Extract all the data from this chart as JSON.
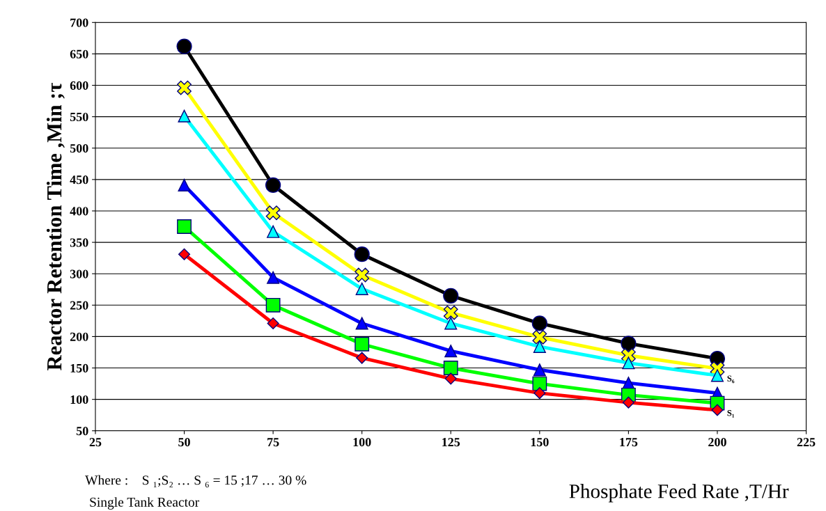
{
  "chart_data": {
    "type": "line",
    "xlabel": "Phosphate Feed Rate ,T/Hr",
    "ylabel": "Reactor Retention Time ,Min ;τ",
    "x": [
      50,
      75,
      100,
      125,
      150,
      175,
      200
    ],
    "series": [
      {
        "color": "#ff0000",
        "marker": "diamond",
        "values": [
          331,
          221,
          166,
          133,
          110,
          95,
          83
        ]
      },
      {
        "color": "#00ff00",
        "marker": "square",
        "values": [
          375,
          250,
          188,
          150,
          125,
          107,
          94
        ]
      },
      {
        "color": "#0000ff",
        "marker": "triangle",
        "values": [
          441,
          294,
          221,
          177,
          147,
          126,
          110
        ]
      },
      {
        "color": "#00ffff",
        "marker": "triangle",
        "values": [
          551,
          367,
          276,
          221,
          184,
          158,
          138
        ]
      },
      {
        "color": "#ffff00",
        "marker": "cross",
        "values": [
          596,
          397,
          298,
          238,
          199,
          170,
          149
        ]
      },
      {
        "color": "#000000",
        "marker": "circle",
        "values": [
          662,
          441,
          331,
          265,
          221,
          189,
          165
        ]
      }
    ],
    "xlim": [
      25,
      225
    ],
    "xticks": [
      25,
      50,
      75,
      100,
      125,
      150,
      175,
      200,
      225
    ],
    "ylim": [
      50,
      700
    ],
    "yticks": [
      50,
      100,
      150,
      200,
      250,
      300,
      350,
      400,
      450,
      500,
      550,
      600,
      650,
      700
    ],
    "grid": "y",
    "legend": false,
    "line_style": "solid",
    "annotations": [
      {
        "text": "S₆",
        "x": 200,
        "y": 138
      },
      {
        "text": "S₁",
        "x": 200,
        "y": 83
      },
      "Where :    S ₁;S₂ … S ₆ = 15 ;17 … 30 %",
      "Single Tank Reactor"
    ]
  }
}
